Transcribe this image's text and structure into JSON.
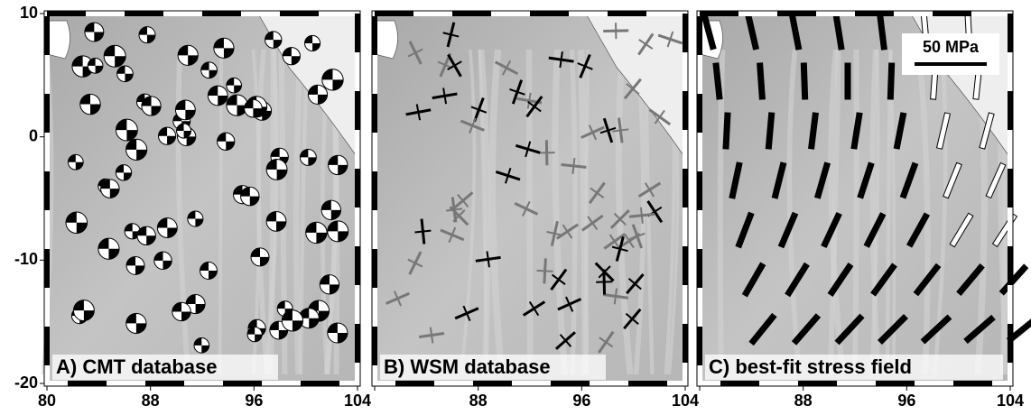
{
  "axes": {
    "xlim": [
      80,
      104
    ],
    "ylim": [
      -20,
      10
    ],
    "xticks": [
      80,
      88,
      96,
      104
    ],
    "yticks": [
      10,
      0,
      -10,
      -20
    ]
  },
  "panels": [
    {
      "label": "A) CMT database"
    },
    {
      "label": "B) WSM database"
    },
    {
      "label": "C) best-fit stress field"
    }
  ],
  "scale_label": "50 MPa"
}
